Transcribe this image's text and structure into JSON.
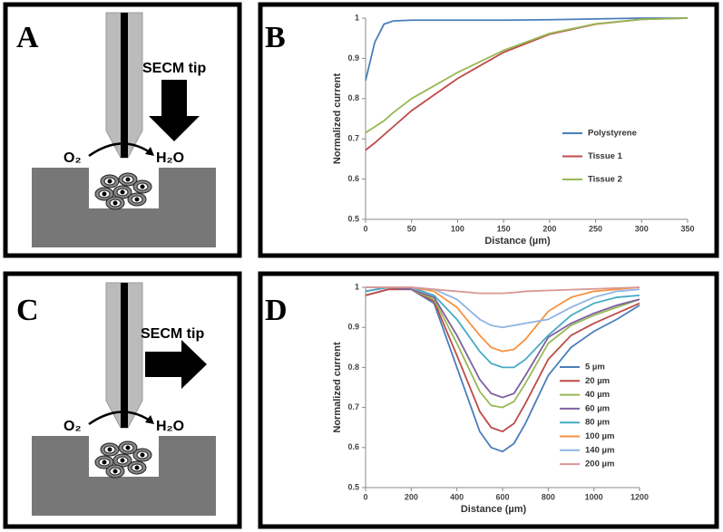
{
  "diagrams": [
    {
      "panel_label": "A",
      "tip_label": "SECM tip",
      "reactant": "O₂",
      "product": "H₂O"
    },
    {
      "panel_label": "C",
      "tip_label": "SECM tip",
      "reactant": "O₂",
      "product": "H₂O"
    }
  ],
  "chart_data": [
    {
      "type": "line",
      "panel_label": "B",
      "x_label": "Distance (µm)",
      "y_label": "Normalized current",
      "x": [
        0,
        10,
        20,
        30,
        50,
        100,
        150,
        200,
        250,
        300,
        350
      ],
      "series": [
        {
          "name": "Polystyrene",
          "color": "#4a7ebb",
          "values": [
            0.845,
            0.94,
            0.985,
            0.993,
            0.995,
            0.995,
            0.995,
            0.996,
            0.998,
            1,
            1
          ]
        },
        {
          "name": "Tissue 1",
          "color": "#be4b48",
          "values": [
            0.672,
            0.69,
            0.71,
            0.73,
            0.77,
            0.85,
            0.915,
            0.96,
            0.985,
            0.997,
            1
          ]
        },
        {
          "name": "Tissue 2",
          "color": "#98b954",
          "values": [
            0.715,
            0.73,
            0.745,
            0.765,
            0.8,
            0.865,
            0.92,
            0.962,
            0.986,
            0.997,
            1
          ]
        }
      ],
      "xlim": [
        0,
        350
      ],
      "xticks": [
        0,
        50,
        100,
        150,
        200,
        250,
        300,
        350
      ],
      "ylim": [
        0.5,
        1
      ],
      "yticks": [
        0.5,
        0.6,
        0.7,
        0.8,
        0.9,
        1
      ],
      "grid": false,
      "legend": "right"
    },
    {
      "type": "line",
      "panel_label": "D",
      "x_label": "Distance (µm)",
      "y_label": "Normalized current",
      "x": [
        0,
        100,
        200,
        300,
        400,
        500,
        550,
        600,
        650,
        700,
        800,
        900,
        1000,
        1100,
        1200
      ],
      "series": [
        {
          "name": "5 µm",
          "color": "#4a7ebb",
          "values": [
            0.98,
            0.995,
            0.995,
            0.96,
            0.8,
            0.64,
            0.6,
            0.59,
            0.61,
            0.66,
            0.78,
            0.85,
            0.89,
            0.92,
            0.955
          ]
        },
        {
          "name": "20 µm",
          "color": "#be4b48",
          "values": [
            0.98,
            0.995,
            0.995,
            0.965,
            0.83,
            0.69,
            0.65,
            0.64,
            0.66,
            0.71,
            0.82,
            0.88,
            0.91,
            0.935,
            0.96
          ]
        },
        {
          "name": "40 µm",
          "color": "#98b954",
          "values": [
            0.99,
            1,
            0.995,
            0.97,
            0.86,
            0.74,
            0.705,
            0.7,
            0.715,
            0.76,
            0.86,
            0.905,
            0.93,
            0.95,
            0.97
          ]
        },
        {
          "name": "60 µm",
          "color": "#7d60a0",
          "values": [
            0.99,
            1,
            0.995,
            0.975,
            0.88,
            0.77,
            0.735,
            0.725,
            0.735,
            0.78,
            0.875,
            0.91,
            0.935,
            0.955,
            0.97
          ]
        },
        {
          "name": "80 µm",
          "color": "#46aac5",
          "values": [
            0.99,
            1,
            1,
            0.98,
            0.92,
            0.84,
            0.81,
            0.8,
            0.8,
            0.82,
            0.88,
            0.93,
            0.96,
            0.975,
            0.98
          ]
        },
        {
          "name": "100 µm",
          "color": "#f69240",
          "values": [
            1,
            1,
            1,
            0.99,
            0.95,
            0.88,
            0.85,
            0.84,
            0.845,
            0.87,
            0.94,
            0.975,
            0.99,
            0.995,
            1
          ]
        },
        {
          "name": "140 µm",
          "color": "#8eb4e3",
          "values": [
            1,
            1,
            1,
            0.995,
            0.97,
            0.92,
            0.905,
            0.9,
            0.905,
            0.91,
            0.92,
            0.95,
            0.975,
            0.99,
            0.995
          ]
        },
        {
          "name": "200 µm",
          "color": "#d99795",
          "values": [
            1,
            1,
            1,
            0.995,
            0.99,
            0.985,
            0.985,
            0.985,
            0.987,
            0.99,
            0.992,
            0.994,
            0.996,
            0.998,
            1
          ]
        }
      ],
      "xlim": [
        0,
        1200
      ],
      "xticks": [
        0,
        200,
        400,
        600,
        800,
        1000,
        1200
      ],
      "ylim": [
        0.5,
        1
      ],
      "yticks": [
        0.5,
        0.6,
        0.7,
        0.8,
        0.9,
        1
      ],
      "grid": false,
      "legend": "right"
    }
  ]
}
